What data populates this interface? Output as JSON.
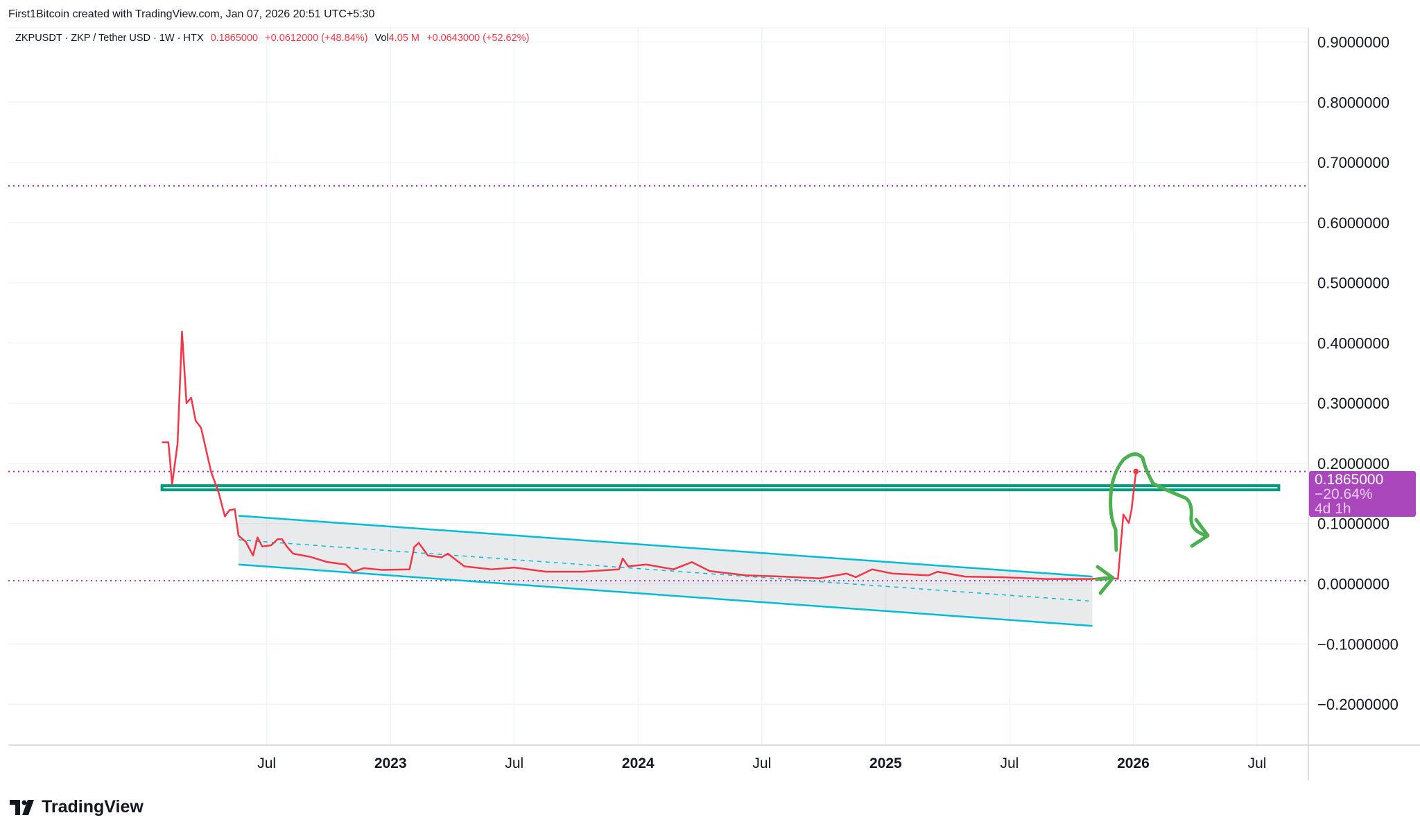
{
  "header": {
    "attribution": "First1Bitcoin created with TradingView.com, Jan 07, 2026 20:51 UTC+5:30",
    "symbol": "ZKPUSDT · ZKP / Tether USD · 1W · HTX",
    "price": "0.1865000",
    "change": "+0.0612000 (+48.84%)",
    "vol_label": "Vol",
    "vol_value": "4.05 M",
    "vol_change": "+0.0643000 (+52.62%)"
  },
  "price_label": {
    "price": "0.1865000",
    "change": "−20.64%",
    "countdown": "4d 1h"
  },
  "brand": "TradingView",
  "colors": {
    "line": "#f23645",
    "channel": "#00bcd4",
    "zone": "#089981",
    "dotted": "#9c27b0",
    "drawing": "#4caf50",
    "label": "#ab47bc"
  },
  "chart_data": {
    "type": "line",
    "title": "ZKPUSDT 1W",
    "ylim": [
      -0.27,
      0.95
    ],
    "xlim": [
      2022.0,
      2026.75
    ],
    "y_ticks": [
      "0.9000000",
      "0.8000000",
      "0.7000000",
      "0.6000000",
      "0.5000000",
      "0.4000000",
      "0.3000000",
      "0.2000000",
      "0.1000000",
      "0.0000000",
      "−0.1000000",
      "−0.2000000"
    ],
    "y_tick_values": [
      0.9,
      0.8,
      0.7,
      0.6,
      0.5,
      0.4,
      0.3,
      0.2,
      0.1,
      0,
      -0.1,
      -0.2
    ],
    "x_ticks": [
      {
        "label": "Jul",
        "x": 2022.5,
        "bold": false
      },
      {
        "label": "2023",
        "x": 2023.0,
        "bold": true
      },
      {
        "label": "Jul",
        "x": 2023.5,
        "bold": false
      },
      {
        "label": "2024",
        "x": 2024.0,
        "bold": true
      },
      {
        "label": "Jul",
        "x": 2024.5,
        "bold": false
      },
      {
        "label": "2025",
        "x": 2025.0,
        "bold": true
      },
      {
        "label": "Jul",
        "x": 2025.5,
        "bold": false
      },
      {
        "label": "2026",
        "x": 2026.0,
        "bold": true
      },
      {
        "label": "Jul",
        "x": 2026.5,
        "bold": false
      }
    ],
    "series": [
      {
        "name": "ZKPUSDT",
        "points": [
          [
            2022.077,
            0.235
          ],
          [
            2022.103,
            0.235
          ],
          [
            2022.118,
            0.165
          ],
          [
            2022.14,
            0.233
          ],
          [
            2022.158,
            0.419
          ],
          [
            2022.176,
            0.3
          ],
          [
            2022.195,
            0.309
          ],
          [
            2022.213,
            0.271
          ],
          [
            2022.235,
            0.259
          ],
          [
            2022.276,
            0.185
          ],
          [
            2022.305,
            0.153
          ],
          [
            2022.331,
            0.112
          ],
          [
            2022.349,
            0.122
          ],
          [
            2022.371,
            0.124
          ],
          [
            2022.386,
            0.08
          ],
          [
            2022.415,
            0.07
          ],
          [
            2022.445,
            0.047
          ],
          [
            2022.463,
            0.077
          ],
          [
            2022.482,
            0.062
          ],
          [
            2022.518,
            0.064
          ],
          [
            2022.544,
            0.074
          ],
          [
            2022.562,
            0.074
          ],
          [
            2022.581,
            0.062
          ],
          [
            2022.607,
            0.05
          ],
          [
            2022.673,
            0.045
          ],
          [
            2022.746,
            0.036
          ],
          [
            2022.82,
            0.032
          ],
          [
            2022.849,
            0.02
          ],
          [
            2022.893,
            0.026
          ],
          [
            2022.967,
            0.023
          ],
          [
            2023.077,
            0.024
          ],
          [
            2023.096,
            0.061
          ],
          [
            2023.114,
            0.068
          ],
          [
            2023.151,
            0.047
          ],
          [
            2023.206,
            0.044
          ],
          [
            2023.232,
            0.05
          ],
          [
            2023.298,
            0.029
          ],
          [
            2023.408,
            0.024
          ],
          [
            2023.5,
            0.027
          ],
          [
            2023.629,
            0.02
          ],
          [
            2023.776,
            0.02
          ],
          [
            2023.923,
            0.024
          ],
          [
            2023.938,
            0.042
          ],
          [
            2023.96,
            0.029
          ],
          [
            2024.033,
            0.032
          ],
          [
            2024.143,
            0.024
          ],
          [
            2024.217,
            0.036
          ],
          [
            2024.29,
            0.021
          ],
          [
            2024.438,
            0.014
          ],
          [
            2024.585,
            0.012
          ],
          [
            2024.732,
            0.009
          ],
          [
            2024.842,
            0.017
          ],
          [
            2024.879,
            0.011
          ],
          [
            2024.945,
            0.024
          ],
          [
            2025.026,
            0.017
          ],
          [
            2025.173,
            0.014
          ],
          [
            2025.21,
            0.02
          ],
          [
            2025.32,
            0.012
          ],
          [
            2025.467,
            0.011
          ],
          [
            2025.651,
            0.008
          ],
          [
            2025.835,
            0.008
          ],
          [
            2025.89,
            0.011
          ],
          [
            2025.938,
            0.008
          ],
          [
            2025.96,
            0.115
          ],
          [
            2025.982,
            0.101
          ],
          [
            2025.993,
            0.123
          ],
          [
            2026.011,
            0.1865
          ]
        ]
      }
    ],
    "channel": {
      "upper": [
        [
          2022.386,
          0.113
        ],
        [
          2025.835,
          0.012
        ]
      ],
      "lower": [
        [
          2022.386,
          0.032
        ],
        [
          2025.835,
          -0.07
        ]
      ],
      "mid": [
        [
          2022.386,
          0.073
        ],
        [
          2025.835,
          -0.029
        ]
      ]
    },
    "zone": {
      "x": [
        2022.077,
        2026.588
      ],
      "y": [
        0.156,
        0.163
      ]
    },
    "dotted_levels": [
      0.661,
      0.1865,
      0.005
    ]
  }
}
